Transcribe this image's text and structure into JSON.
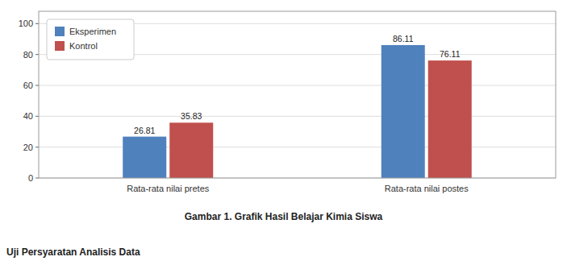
{
  "chart_data": {
    "type": "bar",
    "title": "Gambar 1. Grafik Hasil Belajar Kimia Siswa",
    "annotations": [
      "Uji Persyaratan Analisis Data"
    ],
    "categories": [
      "Rata-rata nilai pretes",
      "Rata-rata nilai postes"
    ],
    "series": [
      {
        "name": "Eksperimen",
        "color": "#4F81BD",
        "values": [
          26.81,
          86.11
        ]
      },
      {
        "name": "Kontrol",
        "color": "#C0504D",
        "values": [
          35.83,
          76.11
        ]
      }
    ],
    "ylim": [
      0,
      108
    ],
    "yticks": [
      0,
      20,
      40,
      60,
      80,
      100
    ],
    "grid": true,
    "legend": "upper left",
    "data_labels": true
  }
}
